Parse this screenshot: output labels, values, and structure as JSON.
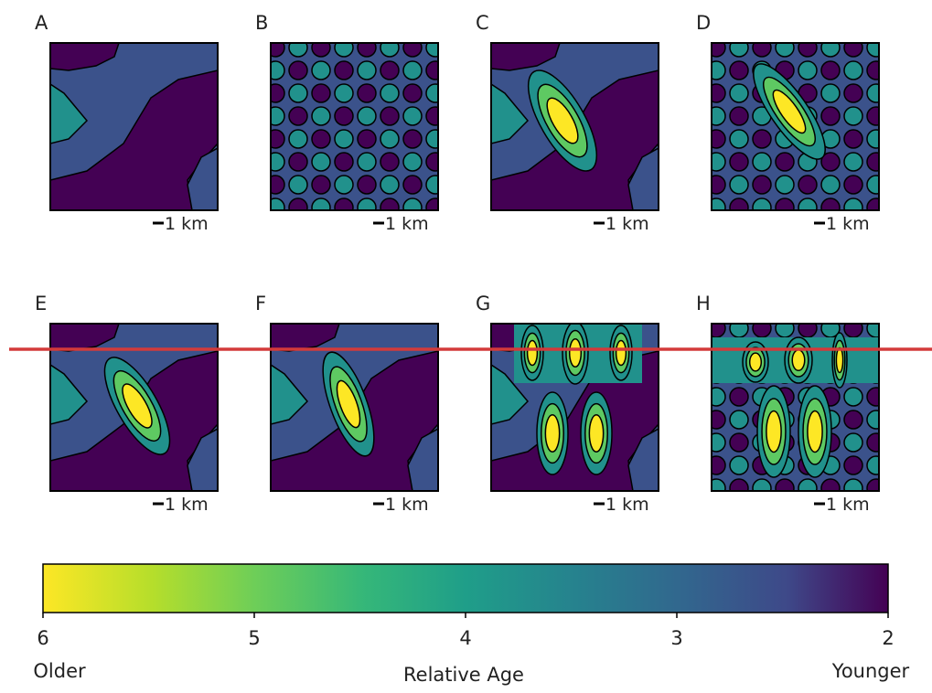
{
  "panels": [
    {
      "label": "A",
      "scale": "1 km"
    },
    {
      "label": "B",
      "scale": "1 km"
    },
    {
      "label": "C",
      "scale": "1 km"
    },
    {
      "label": "D",
      "scale": "1 km"
    },
    {
      "label": "E",
      "scale": "1 km"
    },
    {
      "label": "F",
      "scale": "1 km"
    },
    {
      "label": "G",
      "scale": "1 km"
    },
    {
      "label": "H",
      "scale": "1 km"
    }
  ],
  "colorbar": {
    "label": "Relative Age",
    "lim": [
      6,
      2
    ],
    "ticks": [
      6,
      5,
      4,
      3,
      2
    ],
    "min_label": "Older",
    "max_label": "Younger"
  }
}
